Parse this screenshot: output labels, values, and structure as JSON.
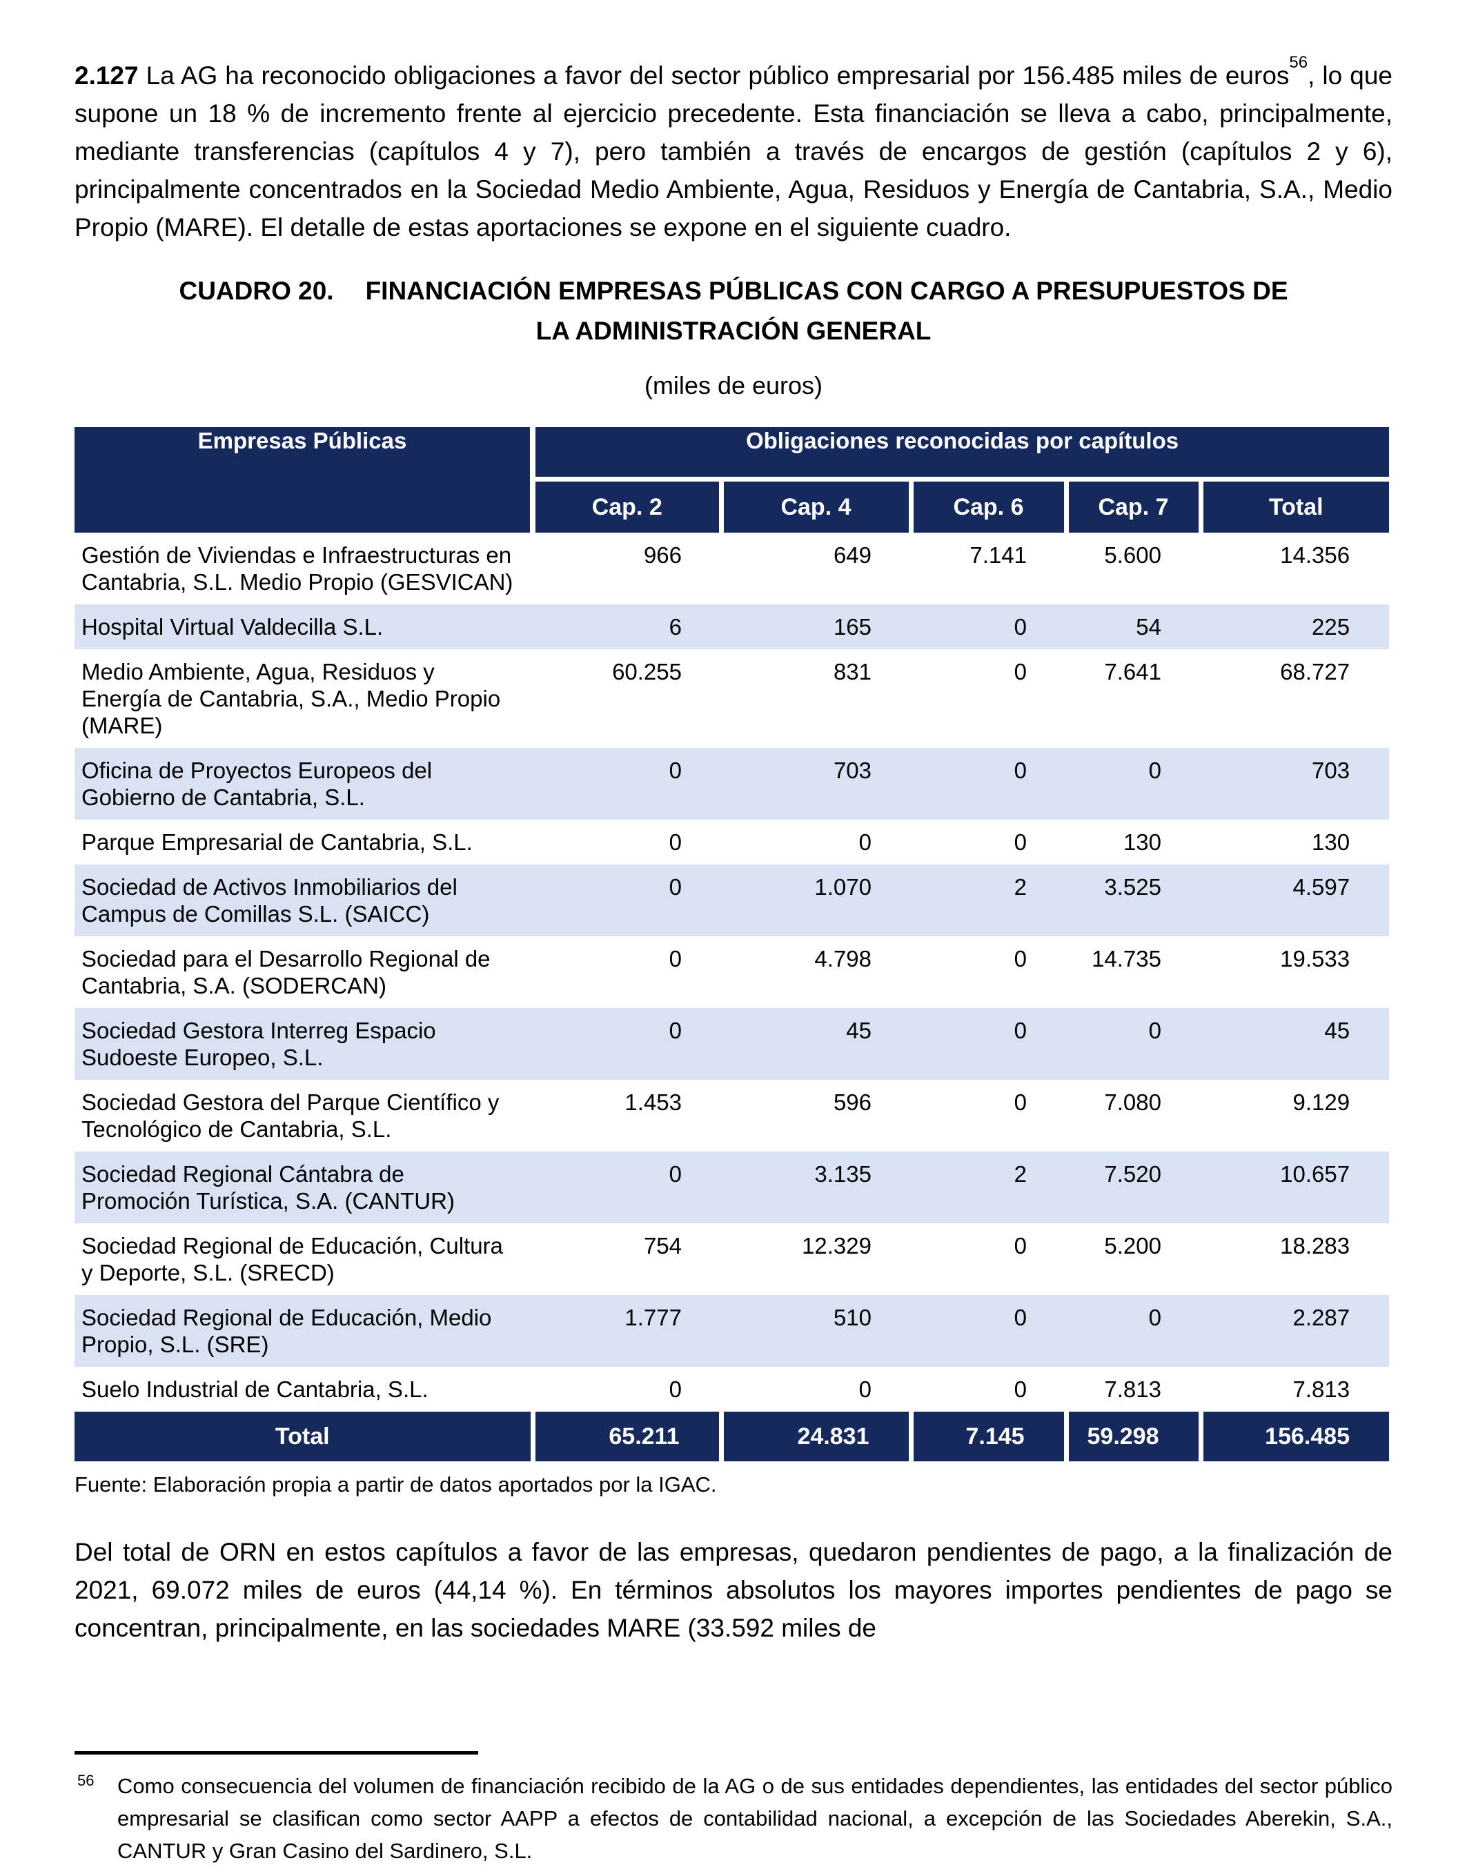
{
  "colors": {
    "header_bg": "#16295C",
    "header_text": "#FFFFFF",
    "row_alt_bg": "#D9E2F3",
    "text": "#000000",
    "page_bg": "#FFFFFF"
  },
  "intro": {
    "number": "2.127",
    "text_before_sup": " La AG ha reconocido obligaciones a favor del sector público empresarial por 156.485 miles de euros",
    "footnote_ref": "56",
    "text_after_sup": ", lo que supone un 18 % de incremento frente al ejercicio precedente. Esta financiación se lleva a cabo, principalmente, mediante transferencias (capítulos 4 y 7), pero también a través de encargos de gestión (capítulos 2 y 6), principalmente concentrados en la Sociedad Medio Ambiente, Agua, Residuos y Energía de Cantabria, S.A., Medio Propio (MARE). El detalle de estas aportaciones se expone en el siguiente cuadro."
  },
  "caption": {
    "label": "CUADRO 20.",
    "title_line1": "FINANCIACIÓN EMPRESAS PÚBLICAS CON CARGO A PRESUPUESTOS DE",
    "title_line2": "LA ADMINISTRACIÓN GENERAL",
    "subtitle": "(miles de euros)"
  },
  "table": {
    "col1_header": "Empresas Públicas",
    "group_header": "Obligaciones reconocidas por capítulos",
    "columns": [
      "Cap. 2",
      "Cap. 4",
      "Cap. 6",
      "Cap. 7",
      "Total"
    ],
    "rows": [
      {
        "name": "Gestión de Viviendas e Infraestructuras en Cantabria, S.L. Medio Propio (GESVICAN)",
        "values": [
          "966",
          "649",
          "7.141",
          "5.600",
          "14.356"
        ]
      },
      {
        "name": "Hospital Virtual Valdecilla S.L.",
        "values": [
          "6",
          "165",
          "0",
          "54",
          "225"
        ]
      },
      {
        "name": "Medio Ambiente, Agua, Residuos y Energía de Cantabria, S.A., Medio Propio (MARE)",
        "values": [
          "60.255",
          "831",
          "0",
          "7.641",
          "68.727"
        ]
      },
      {
        "name": "Oficina de Proyectos Europeos del Gobierno de Cantabria, S.L.",
        "values": [
          "0",
          "703",
          "0",
          "0",
          "703"
        ]
      },
      {
        "name": "Parque Empresarial de Cantabria, S.L.",
        "values": [
          "0",
          "0",
          "0",
          "130",
          "130"
        ]
      },
      {
        "name": "Sociedad de Activos Inmobiliarios del Campus de Comillas S.L. (SAICC)",
        "values": [
          "0",
          "1.070",
          "2",
          "3.525",
          "4.597"
        ]
      },
      {
        "name": "Sociedad para el Desarrollo Regional de Cantabria, S.A. (SODERCAN)",
        "values": [
          "0",
          "4.798",
          "0",
          "14.735",
          "19.533"
        ]
      },
      {
        "name": "Sociedad Gestora Interreg Espacio Sudoeste Europeo, S.L.",
        "values": [
          "0",
          "45",
          "0",
          "0",
          "45"
        ]
      },
      {
        "name": "Sociedad Gestora del Parque Científico y Tecnológico de Cantabria, S.L.",
        "values": [
          "1.453",
          "596",
          "0",
          "7.080",
          "9.129"
        ]
      },
      {
        "name": "Sociedad Regional Cántabra de Promoción Turística, S.A. (CANTUR)",
        "values": [
          "0",
          "3.135",
          "2",
          "7.520",
          "10.657"
        ]
      },
      {
        "name": "Sociedad Regional de Educación, Cultura y Deporte, S.L. (SRECD)",
        "values": [
          "754",
          "12.329",
          "0",
          "5.200",
          "18.283"
        ]
      },
      {
        "name": "Sociedad Regional de Educación, Medio Propio, S.L. (SRE)",
        "values": [
          "1.777",
          "510",
          "0",
          "0",
          "2.287"
        ]
      },
      {
        "name": "Suelo Industrial de Cantabria, S.L.",
        "values": [
          "0",
          "0",
          "0",
          "7.813",
          "7.813"
        ]
      }
    ],
    "total_row": {
      "label": "Total",
      "values": [
        "65.211",
        "24.831",
        "7.145",
        "59.298",
        "156.485"
      ]
    },
    "source": "Fuente: Elaboración propia a partir de datos aportados por la IGAC."
  },
  "closing_paragraph": "Del total de ORN en estos capítulos a favor de las empresas, quedaron pendientes de pago, a la finalización de 2021, 69.072 miles de euros (44,14 %). En términos absolutos los mayores importes pendientes de pago se concentran, principalmente, en las sociedades MARE (33.592 miles de",
  "footnote": {
    "number": "56",
    "text": "Como consecuencia del volumen de financiación recibido de la AG o de sus entidades dependientes, las entidades del sector público empresarial se clasifican como sector AAPP a efectos de contabilidad nacional, a excepción de las Sociedades Aberekin, S.A., CANTUR y Gran Casino del Sardinero, S.L."
  }
}
